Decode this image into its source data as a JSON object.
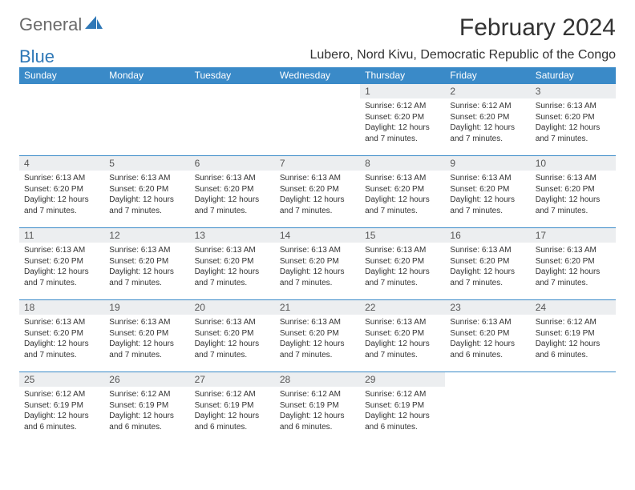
{
  "brand": {
    "part1": "General",
    "part2": "Blue"
  },
  "title": "February 2024",
  "location": "Lubero, Nord Kivu, Democratic Republic of the Congo",
  "colors": {
    "header_bg": "#3a8ac8",
    "header_fg": "#ffffff",
    "daybar_bg": "#eceef0",
    "border": "#3a8ac8",
    "logo_blue": "#2f78b7"
  },
  "weekdays": [
    "Sunday",
    "Monday",
    "Tuesday",
    "Wednesday",
    "Thursday",
    "Friday",
    "Saturday"
  ],
  "layout": {
    "blank_leading_cells": 4,
    "grid_cols": 7,
    "grid_rows": 5
  },
  "days": [
    {
      "n": 1,
      "sunrise": "6:12 AM",
      "sunset": "6:20 PM",
      "daylight": "12 hours and 7 minutes."
    },
    {
      "n": 2,
      "sunrise": "6:12 AM",
      "sunset": "6:20 PM",
      "daylight": "12 hours and 7 minutes."
    },
    {
      "n": 3,
      "sunrise": "6:13 AM",
      "sunset": "6:20 PM",
      "daylight": "12 hours and 7 minutes."
    },
    {
      "n": 4,
      "sunrise": "6:13 AM",
      "sunset": "6:20 PM",
      "daylight": "12 hours and 7 minutes."
    },
    {
      "n": 5,
      "sunrise": "6:13 AM",
      "sunset": "6:20 PM",
      "daylight": "12 hours and 7 minutes."
    },
    {
      "n": 6,
      "sunrise": "6:13 AM",
      "sunset": "6:20 PM",
      "daylight": "12 hours and 7 minutes."
    },
    {
      "n": 7,
      "sunrise": "6:13 AM",
      "sunset": "6:20 PM",
      "daylight": "12 hours and 7 minutes."
    },
    {
      "n": 8,
      "sunrise": "6:13 AM",
      "sunset": "6:20 PM",
      "daylight": "12 hours and 7 minutes."
    },
    {
      "n": 9,
      "sunrise": "6:13 AM",
      "sunset": "6:20 PM",
      "daylight": "12 hours and 7 minutes."
    },
    {
      "n": 10,
      "sunrise": "6:13 AM",
      "sunset": "6:20 PM",
      "daylight": "12 hours and 7 minutes."
    },
    {
      "n": 11,
      "sunrise": "6:13 AM",
      "sunset": "6:20 PM",
      "daylight": "12 hours and 7 minutes."
    },
    {
      "n": 12,
      "sunrise": "6:13 AM",
      "sunset": "6:20 PM",
      "daylight": "12 hours and 7 minutes."
    },
    {
      "n": 13,
      "sunrise": "6:13 AM",
      "sunset": "6:20 PM",
      "daylight": "12 hours and 7 minutes."
    },
    {
      "n": 14,
      "sunrise": "6:13 AM",
      "sunset": "6:20 PM",
      "daylight": "12 hours and 7 minutes."
    },
    {
      "n": 15,
      "sunrise": "6:13 AM",
      "sunset": "6:20 PM",
      "daylight": "12 hours and 7 minutes."
    },
    {
      "n": 16,
      "sunrise": "6:13 AM",
      "sunset": "6:20 PM",
      "daylight": "12 hours and 7 minutes."
    },
    {
      "n": 17,
      "sunrise": "6:13 AM",
      "sunset": "6:20 PM",
      "daylight": "12 hours and 7 minutes."
    },
    {
      "n": 18,
      "sunrise": "6:13 AM",
      "sunset": "6:20 PM",
      "daylight": "12 hours and 7 minutes."
    },
    {
      "n": 19,
      "sunrise": "6:13 AM",
      "sunset": "6:20 PM",
      "daylight": "12 hours and 7 minutes."
    },
    {
      "n": 20,
      "sunrise": "6:13 AM",
      "sunset": "6:20 PM",
      "daylight": "12 hours and 7 minutes."
    },
    {
      "n": 21,
      "sunrise": "6:13 AM",
      "sunset": "6:20 PM",
      "daylight": "12 hours and 7 minutes."
    },
    {
      "n": 22,
      "sunrise": "6:13 AM",
      "sunset": "6:20 PM",
      "daylight": "12 hours and 7 minutes."
    },
    {
      "n": 23,
      "sunrise": "6:13 AM",
      "sunset": "6:20 PM",
      "daylight": "12 hours and 6 minutes."
    },
    {
      "n": 24,
      "sunrise": "6:12 AM",
      "sunset": "6:19 PM",
      "daylight": "12 hours and 6 minutes."
    },
    {
      "n": 25,
      "sunrise": "6:12 AM",
      "sunset": "6:19 PM",
      "daylight": "12 hours and 6 minutes."
    },
    {
      "n": 26,
      "sunrise": "6:12 AM",
      "sunset": "6:19 PM",
      "daylight": "12 hours and 6 minutes."
    },
    {
      "n": 27,
      "sunrise": "6:12 AM",
      "sunset": "6:19 PM",
      "daylight": "12 hours and 6 minutes."
    },
    {
      "n": 28,
      "sunrise": "6:12 AM",
      "sunset": "6:19 PM",
      "daylight": "12 hours and 6 minutes."
    },
    {
      "n": 29,
      "sunrise": "6:12 AM",
      "sunset": "6:19 PM",
      "daylight": "12 hours and 6 minutes."
    }
  ],
  "labels": {
    "sunrise": "Sunrise:",
    "sunset": "Sunset:",
    "daylight": "Daylight:"
  }
}
